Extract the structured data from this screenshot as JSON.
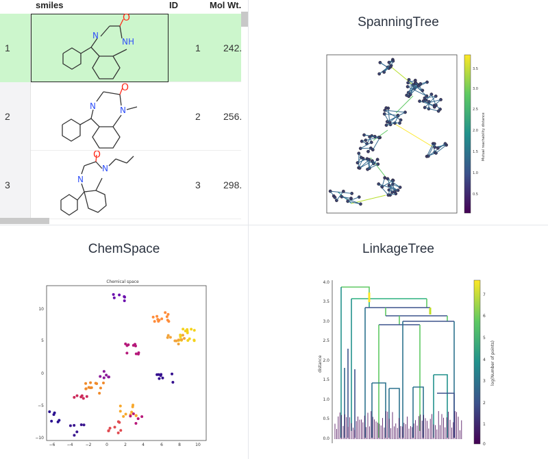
{
  "table": {
    "columns": [
      "smiles",
      "ID",
      "Mol Wt."
    ],
    "rows": [
      {
        "num": "1",
        "id": "1",
        "molwt": "242.",
        "selected": true
      },
      {
        "num": "2",
        "id": "2",
        "molwt": "256.",
        "selected": false
      },
      {
        "num": "3",
        "id": "3",
        "molwt": "298.",
        "selected": false
      }
    ]
  },
  "spanning": {
    "title": "SpanningTree",
    "colorbar_label": "Mutual reachability distance",
    "colorbar_ticks": [
      "0.5",
      "1.0",
      "1.5",
      "2.0",
      "2.5",
      "3.0",
      "3.5"
    ]
  },
  "chemspace": {
    "title": "ChemSpace",
    "plot_title": "Chemical space",
    "xticks": [
      "−6",
      "−4",
      "−2",
      "0",
      "2",
      "4",
      "6",
      "8",
      "10"
    ],
    "yticks": [
      "10",
      "5",
      "0",
      "−5",
      "−10"
    ]
  },
  "linkage": {
    "title": "LinkageTree",
    "ylabel": "distance",
    "colorbar_label": "log(Number of points)",
    "yticks": [
      "4.0",
      "3.5",
      "3.0",
      "2.5",
      "2.0",
      "1.5",
      "1.0",
      "0.5",
      "0.0"
    ],
    "colorbar_ticks": [
      "7",
      "6",
      "5",
      "4",
      "3",
      "2",
      "1",
      "0"
    ]
  },
  "colors": {
    "selected_row": "#ccf6cc",
    "nitrogen": "#3050f8",
    "oxygen": "#ff2a1a"
  }
}
